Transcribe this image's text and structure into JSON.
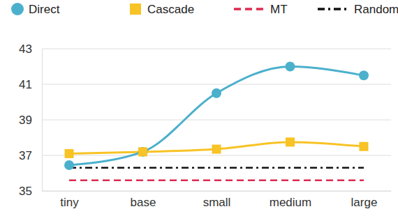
{
  "chart_data": {
    "type": "line",
    "categories": [
      "tiny",
      "base",
      "small",
      "medium",
      "large"
    ],
    "series": [
      {
        "name": "Direct",
        "color": "#4bb0cc",
        "marker": "circle",
        "line_style": "solid",
        "values": [
          36.45,
          37.2,
          40.5,
          42.0,
          41.5
        ]
      },
      {
        "name": "Cascade",
        "color": "#f7c325",
        "marker": "square",
        "line_style": "solid",
        "values": [
          37.1,
          37.2,
          37.35,
          37.75,
          37.5
        ]
      },
      {
        "name": "MT",
        "color": "#dc2b4f",
        "marker": "none",
        "line_style": "dashed",
        "values": [
          35.6,
          35.6,
          35.6,
          35.6,
          35.6
        ]
      },
      {
        "name": "Random",
        "color": "#111111",
        "marker": "none",
        "line_style": "dashdot",
        "values": [
          36.3,
          36.3,
          36.3,
          36.3,
          36.3
        ]
      }
    ],
    "ylim": [
      35,
      43
    ],
    "yticks": [
      35,
      37,
      39,
      41,
      43
    ],
    "grid": true,
    "legend": "top"
  }
}
